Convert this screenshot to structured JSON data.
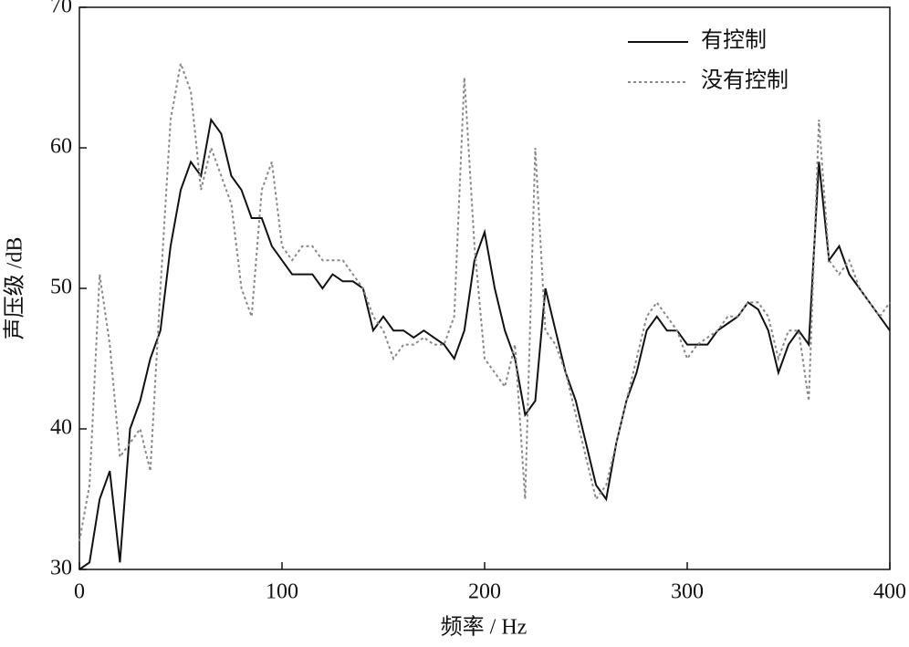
{
  "chart_data": {
    "type": "line",
    "x_label": "频率 / Hz",
    "y_label": "声压级 /dB",
    "x": [
      0,
      5,
      10,
      15,
      20,
      25,
      30,
      35,
      40,
      45,
      50,
      55,
      60,
      65,
      70,
      75,
      80,
      85,
      90,
      95,
      100,
      105,
      110,
      115,
      120,
      125,
      130,
      135,
      140,
      145,
      150,
      155,
      160,
      165,
      170,
      175,
      180,
      185,
      190,
      195,
      200,
      205,
      210,
      215,
      220,
      225,
      230,
      235,
      240,
      245,
      250,
      255,
      260,
      265,
      270,
      275,
      280,
      285,
      290,
      295,
      300,
      305,
      310,
      315,
      320,
      325,
      330,
      335,
      340,
      345,
      350,
      355,
      360,
      365,
      370,
      375,
      380,
      385,
      390,
      395,
      400
    ],
    "series": [
      {
        "name": "有控制",
        "color": "#111111",
        "dash": "solid",
        "values": [
          30,
          30.5,
          35,
          37,
          30.5,
          40,
          42,
          45,
          47,
          53,
          57,
          59,
          58,
          62,
          61,
          58,
          57,
          55,
          55,
          53,
          52,
          51,
          51,
          51,
          50,
          51,
          50.5,
          50.5,
          50,
          47,
          48,
          47,
          47,
          46.5,
          47,
          46.5,
          46,
          45,
          47,
          52,
          54,
          50,
          47,
          45,
          41,
          42,
          50,
          47,
          44,
          42,
          39,
          36,
          35,
          39,
          42,
          44,
          47,
          48,
          47,
          47,
          46,
          46,
          46,
          47,
          47.5,
          48,
          49,
          48.5,
          47,
          44,
          46,
          47,
          46,
          59,
          52,
          53,
          51,
          50,
          49,
          48,
          47
        ]
      },
      {
        "name": "没有控制",
        "color": "#888888",
        "dash": "dotted",
        "values": [
          32,
          36,
          51,
          46,
          38,
          39,
          40,
          37,
          50,
          62,
          66,
          64,
          57,
          60,
          58,
          56,
          50,
          48,
          57,
          59,
          53,
          52,
          53,
          53,
          52,
          52,
          52,
          51,
          50,
          48,
          47,
          45,
          46,
          46,
          46.5,
          46,
          46,
          48,
          65,
          53,
          45,
          44,
          43,
          46,
          35,
          60,
          47,
          46,
          44,
          41,
          38,
          35,
          36,
          39,
          42,
          45,
          48,
          49,
          48,
          47,
          45,
          46,
          46.5,
          47,
          48,
          48,
          49,
          49,
          48,
          45,
          47,
          47,
          42,
          62,
          52,
          51,
          52,
          50,
          49,
          48,
          49
        ]
      }
    ],
    "xlim": [
      0,
      400
    ],
    "ylim": [
      30,
      70
    ],
    "xticks": [
      0,
      100,
      200,
      300,
      400
    ],
    "yticks": [
      30,
      40,
      50,
      60,
      70
    ],
    "grid": false,
    "legend": "upper-right"
  }
}
